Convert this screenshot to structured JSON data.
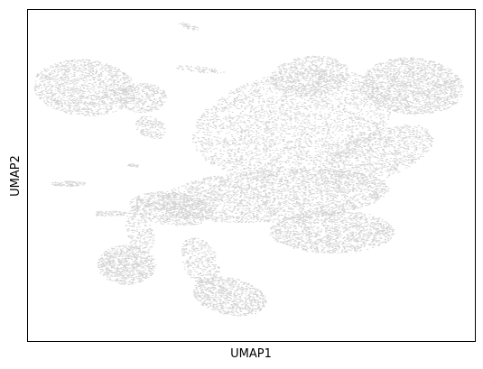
{
  "chart_data": {
    "type": "scatter",
    "title": "",
    "xlabel": "UMAP1",
    "ylabel": "UMAP2",
    "xlim": [
      0,
      100
    ],
    "ylim": [
      0,
      100
    ],
    "x_ticks_shown": false,
    "y_ticks_shown": false,
    "grid": false,
    "legend": "none",
    "point_color": "#d3d3d3",
    "series": [
      {
        "clusters": [
          {
            "id": "top-left",
            "cx": 12.5,
            "cy": 76.5,
            "rx": 11.5,
            "ry": 8.5,
            "rot": -8,
            "n": 1400
          },
          {
            "id": "top-left-neck",
            "cx": 25.5,
            "cy": 73.5,
            "rx": 5.5,
            "ry": 4.5,
            "rot": 0,
            "n": 350
          },
          {
            "id": "top-left-tail",
            "cx": 27.5,
            "cy": 64.5,
            "rx": 4.0,
            "ry": 3.0,
            "rot": -40,
            "n": 160
          },
          {
            "id": "center-large",
            "cx": 59.0,
            "cy": 66.0,
            "rx": 23.0,
            "ry": 15.0,
            "rot": 20,
            "n": 3000
          },
          {
            "id": "center-upper",
            "cx": 63.0,
            "cy": 80.0,
            "rx": 9.0,
            "ry": 6.0,
            "rot": 10,
            "n": 700
          },
          {
            "id": "top-right",
            "cx": 86.0,
            "cy": 77.0,
            "rx": 11.5,
            "ry": 8.5,
            "rot": -10,
            "n": 1700
          },
          {
            "id": "right-mid",
            "cx": 78.0,
            "cy": 56.0,
            "rx": 14.0,
            "ry": 7.0,
            "rot": 30,
            "n": 1100
          },
          {
            "id": "middle-band",
            "cx": 55.0,
            "cy": 44.0,
            "rx": 26.0,
            "ry": 8.0,
            "rot": 5,
            "n": 2800
          },
          {
            "id": "lower-right",
            "cx": 68.0,
            "cy": 33.0,
            "rx": 14.0,
            "ry": 6.5,
            "rot": 0,
            "n": 1400
          },
          {
            "id": "left-band",
            "cx": 32.0,
            "cy": 40.0,
            "rx": 9.5,
            "ry": 5.0,
            "rot": -10,
            "n": 800
          },
          {
            "id": "bottom-left",
            "cx": 22.0,
            "cy": 23.0,
            "rx": 6.5,
            "ry": 6.0,
            "rot": 0,
            "n": 800
          },
          {
            "id": "bottom-left-arm",
            "cx": 25.0,
            "cy": 33.0,
            "rx": 3.0,
            "ry": 7.0,
            "rot": 10,
            "n": 200
          },
          {
            "id": "bottom-center",
            "cx": 45.0,
            "cy": 13.5,
            "rx": 8.5,
            "ry": 5.5,
            "rot": -20,
            "n": 850
          },
          {
            "id": "bottom-stem",
            "cx": 38.5,
            "cy": 24.0,
            "rx": 4.0,
            "ry": 7.5,
            "rot": 15,
            "n": 350
          },
          {
            "id": "left-streak",
            "cx": 9.0,
            "cy": 47.5,
            "rx": 4.0,
            "ry": 0.8,
            "rot": 0,
            "n": 90
          },
          {
            "id": "small-bar",
            "cx": 18.0,
            "cy": 38.5,
            "rx": 4.0,
            "ry": 0.9,
            "rot": 0,
            "n": 70
          },
          {
            "id": "top-streak",
            "cx": 36.0,
            "cy": 95.0,
            "rx": 2.5,
            "ry": 0.7,
            "rot": -25,
            "n": 40
          },
          {
            "id": "upper-streak",
            "cx": 38.5,
            "cy": 82.0,
            "rx": 6.0,
            "ry": 0.9,
            "rot": -8,
            "n": 70
          },
          {
            "id": "tiny-blob",
            "cx": 23.5,
            "cy": 53.0,
            "rx": 1.2,
            "ry": 0.6,
            "rot": 0,
            "n": 25
          }
        ]
      }
    ]
  }
}
